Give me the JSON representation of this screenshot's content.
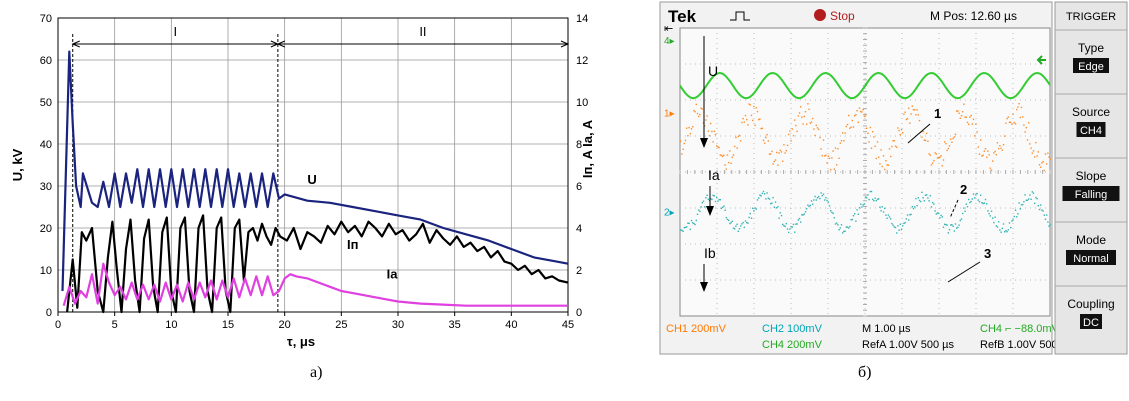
{
  "figure_labels": {
    "a": "a)",
    "b": "б)"
  },
  "chart_data": [
    {
      "type": "line",
      "panel": "a)",
      "xlabel": "τ, μs",
      "ylabel_left": "U, kV",
      "ylabel_right": "Iп, A   Ia, A",
      "xlim": [
        0,
        45
      ],
      "ylim_left": [
        0,
        70
      ],
      "ylim_right": [
        0,
        14
      ],
      "x_ticks": [
        "0",
        "5",
        "10",
        "15",
        "20",
        "25",
        "30",
        "35",
        "40",
        "45"
      ],
      "y_ticks_left": [
        "0",
        "10",
        "20",
        "30",
        "40",
        "50",
        "60",
        "70"
      ],
      "y_ticks_right": [
        "0",
        "2",
        "4",
        "6",
        "8",
        "10",
        "12",
        "14"
      ],
      "grid": true,
      "regions": [
        {
          "label": "I",
          "x_start": 1.3,
          "x_end": 19.4
        },
        {
          "label": "II",
          "x_start": 19.4,
          "x_end": 45
        }
      ],
      "series": [
        {
          "name": "U",
          "axis": "left",
          "color": "#1a237e",
          "x": [
            0.4,
            1.0,
            1.3,
            1.6,
            2.0,
            2.2,
            3,
            3.5,
            4,
            4.5,
            5,
            5.5,
            6,
            6.5,
            7,
            7.5,
            8,
            8.5,
            9,
            9.5,
            10,
            10.5,
            11,
            11.5,
            12,
            12.5,
            13,
            13.5,
            14,
            14.5,
            15,
            15.5,
            16,
            16.5,
            17,
            17.5,
            18,
            18.5,
            19,
            19.5,
            20,
            22,
            24,
            26,
            28,
            30,
            32,
            34,
            36,
            38,
            40,
            42,
            44,
            45
          ],
          "y": [
            5,
            62,
            45,
            30,
            25,
            33,
            26,
            25,
            31,
            25,
            33,
            25,
            33,
            26,
            34,
            25,
            34,
            25,
            34,
            25,
            34,
            25,
            34,
            25,
            34,
            25,
            34,
            25,
            34,
            25,
            34,
            25,
            33,
            25,
            33,
            25,
            33,
            25,
            33,
            27,
            28,
            26.5,
            26,
            25,
            24,
            23,
            22,
            20,
            18.5,
            17,
            15,
            13,
            12,
            11.5
          ]
        },
        {
          "name": "Iп",
          "axis": "right",
          "color": "#000000",
          "x": [
            0.8,
            1.3,
            1.7,
            2.1,
            2.5,
            3.0,
            3.5,
            4.0,
            4.4,
            4.8,
            5.2,
            5.6,
            6.0,
            6.4,
            6.8,
            7.2,
            7.6,
            8.0,
            8.4,
            8.8,
            9.2,
            9.6,
            10.0,
            10.4,
            10.8,
            11.2,
            11.6,
            12.0,
            12.4,
            12.8,
            13.2,
            13.6,
            14.0,
            14.4,
            14.8,
            15.2,
            15.6,
            16.0,
            16.4,
            16.8,
            17.2,
            17.6,
            18.0,
            18.4,
            18.8,
            19.2,
            19.6,
            20.2,
            20.8,
            21.4,
            22.0,
            22.6,
            23.2,
            23.8,
            24.4,
            25.0,
            25.6,
            26.2,
            26.8,
            27.4,
            28.0,
            28.6,
            29.2,
            29.8,
            30.4,
            31.0,
            31.6,
            32.2,
            32.8,
            33.4,
            34.0,
            34.6,
            35.2,
            35.8,
            36.4,
            37.0,
            37.6,
            38.2,
            38.8,
            39.4,
            40.0,
            40.6,
            41.2,
            41.8,
            42.4,
            43.0,
            43.6,
            44.2,
            45.0
          ],
          "y": [
            0,
            2.5,
            0.2,
            3.8,
            3.4,
            4.0,
            1.0,
            0.0,
            2.6,
            4.3,
            2.0,
            0.0,
            3.0,
            4.4,
            1.5,
            0.0,
            3.5,
            4.4,
            1.2,
            0.0,
            3.8,
            4.5,
            1.0,
            0.0,
            4.0,
            4.5,
            1.0,
            0.0,
            4.0,
            4.6,
            1.0,
            0.0,
            4.0,
            4.5,
            1.0,
            0.0,
            4.0,
            4.4,
            1.5,
            3.8,
            4.0,
            3.4,
            4.2,
            3.6,
            3.2,
            4.0,
            3.6,
            3.4,
            4.0,
            3.0,
            3.8,
            3.6,
            3.3,
            4.1,
            3.7,
            4.3,
            3.8,
            4.1,
            3.6,
            4.3,
            4.0,
            3.6,
            4.2,
            3.7,
            3.9,
            3.4,
            3.7,
            4.2,
            3.3,
            3.9,
            3.5,
            3.2,
            3.6,
            3.1,
            3.3,
            2.9,
            3.1,
            2.6,
            2.9,
            2.4,
            2.3,
            2.0,
            2.2,
            1.8,
            2.0,
            1.6,
            1.7,
            1.5,
            1.4
          ]
        },
        {
          "name": "Ia",
          "axis": "right",
          "color": "#e040e0",
          "x": [
            0.5,
            1.0,
            1.5,
            2.0,
            2.5,
            3.0,
            3.5,
            4.0,
            4.5,
            5.0,
            5.5,
            6.0,
            6.5,
            7.0,
            7.5,
            8.0,
            8.5,
            9.0,
            9.5,
            10.0,
            10.5,
            11.0,
            11.5,
            12.0,
            12.5,
            13.0,
            13.5,
            14.0,
            14.5,
            15.0,
            15.5,
            16.0,
            16.5,
            17.0,
            17.5,
            18.0,
            18.5,
            19.0,
            19.5,
            20.0,
            20.5,
            21.0,
            22,
            23,
            24,
            25,
            26,
            27,
            28,
            29,
            30,
            32,
            34,
            36,
            38,
            40,
            42,
            44,
            45
          ],
          "y": [
            0.3,
            1.2,
            0.4,
            1.0,
            0.7,
            1.8,
            0.4,
            2.3,
            1.4,
            0.8,
            1.2,
            0.6,
            1.4,
            0.6,
            1.3,
            0.6,
            1.3,
            0.5,
            1.4,
            0.6,
            1.3,
            0.5,
            1.4,
            0.6,
            1.4,
            0.7,
            1.5,
            0.6,
            1.5,
            0.7,
            1.6,
            0.7,
            1.6,
            0.8,
            1.7,
            0.8,
            1.7,
            0.8,
            1.0,
            1.6,
            1.8,
            1.7,
            1.6,
            1.4,
            1.2,
            1.0,
            0.9,
            0.8,
            0.7,
            0.6,
            0.5,
            0.4,
            0.35,
            0.3,
            0.3,
            0.3,
            0.3,
            0.3,
            0.3
          ]
        }
      ],
      "annotations": [
        {
          "text": "U",
          "x": 22.0,
          "y_left": 30.5
        },
        {
          "text": "Iп",
          "x": 25.5,
          "y_right": 3.0
        },
        {
          "text": "Ia",
          "x": 29.0,
          "y_right": 1.6
        }
      ]
    },
    {
      "type": "line",
      "panel": "б)",
      "title": "Oscilloscope screen",
      "top_bar": {
        "brand": "Tek",
        "status": "Stop",
        "mpos": "M Pos: 12.60 µs",
        "menu_title": "TRIGGER"
      },
      "menu": [
        {
          "label": "Type",
          "value": "Edge"
        },
        {
          "label": "Source",
          "value": "CH4"
        },
        {
          "label": "Slope",
          "value": "Falling"
        },
        {
          "label": "Mode",
          "value": "Normal"
        },
        {
          "label": "Coupling",
          "value": "DC"
        }
      ],
      "readouts": [
        {
          "text": "CH1  200mV",
          "color": "#ff7a00"
        },
        {
          "text": "CH2  100mV",
          "color": "#00a6b8"
        },
        {
          "text": "M 1.00 µs",
          "color": "#000000"
        },
        {
          "text": "CH4  ⌐ −88.0mV",
          "color": "#22aa22"
        },
        {
          "text": "CH4  200mV",
          "color": "#22aa22"
        },
        {
          "text": "RefA 1.00V 500 µs",
          "color": "#000000"
        },
        {
          "text": "RefB 1.00V 500 µs",
          "color": "#000000"
        }
      ],
      "trace_labels": [
        {
          "text": "U"
        },
        {
          "text": "Ia"
        },
        {
          "text": "Ib"
        },
        {
          "text": "1"
        },
        {
          "text": "2"
        },
        {
          "text": "3"
        }
      ],
      "series": [
        {
          "name": "U (CH4)",
          "color": "#33cc33",
          "baseline_div": 1.6,
          "amp_div": 0.35,
          "period_div": 1.43
        },
        {
          "name": "Ia (CH1)",
          "color": "#ff8c2a",
          "baseline_div": 3.0,
          "amp_div": 0.65,
          "period_div": 1.43
        },
        {
          "name": "Ib (CH2)",
          "color": "#33b5b5",
          "baseline_div": 5.1,
          "amp_div": 0.45,
          "period_div": 1.43
        }
      ],
      "channel_markers": [
        "4",
        "1",
        "2",
        "B"
      ]
    }
  ]
}
